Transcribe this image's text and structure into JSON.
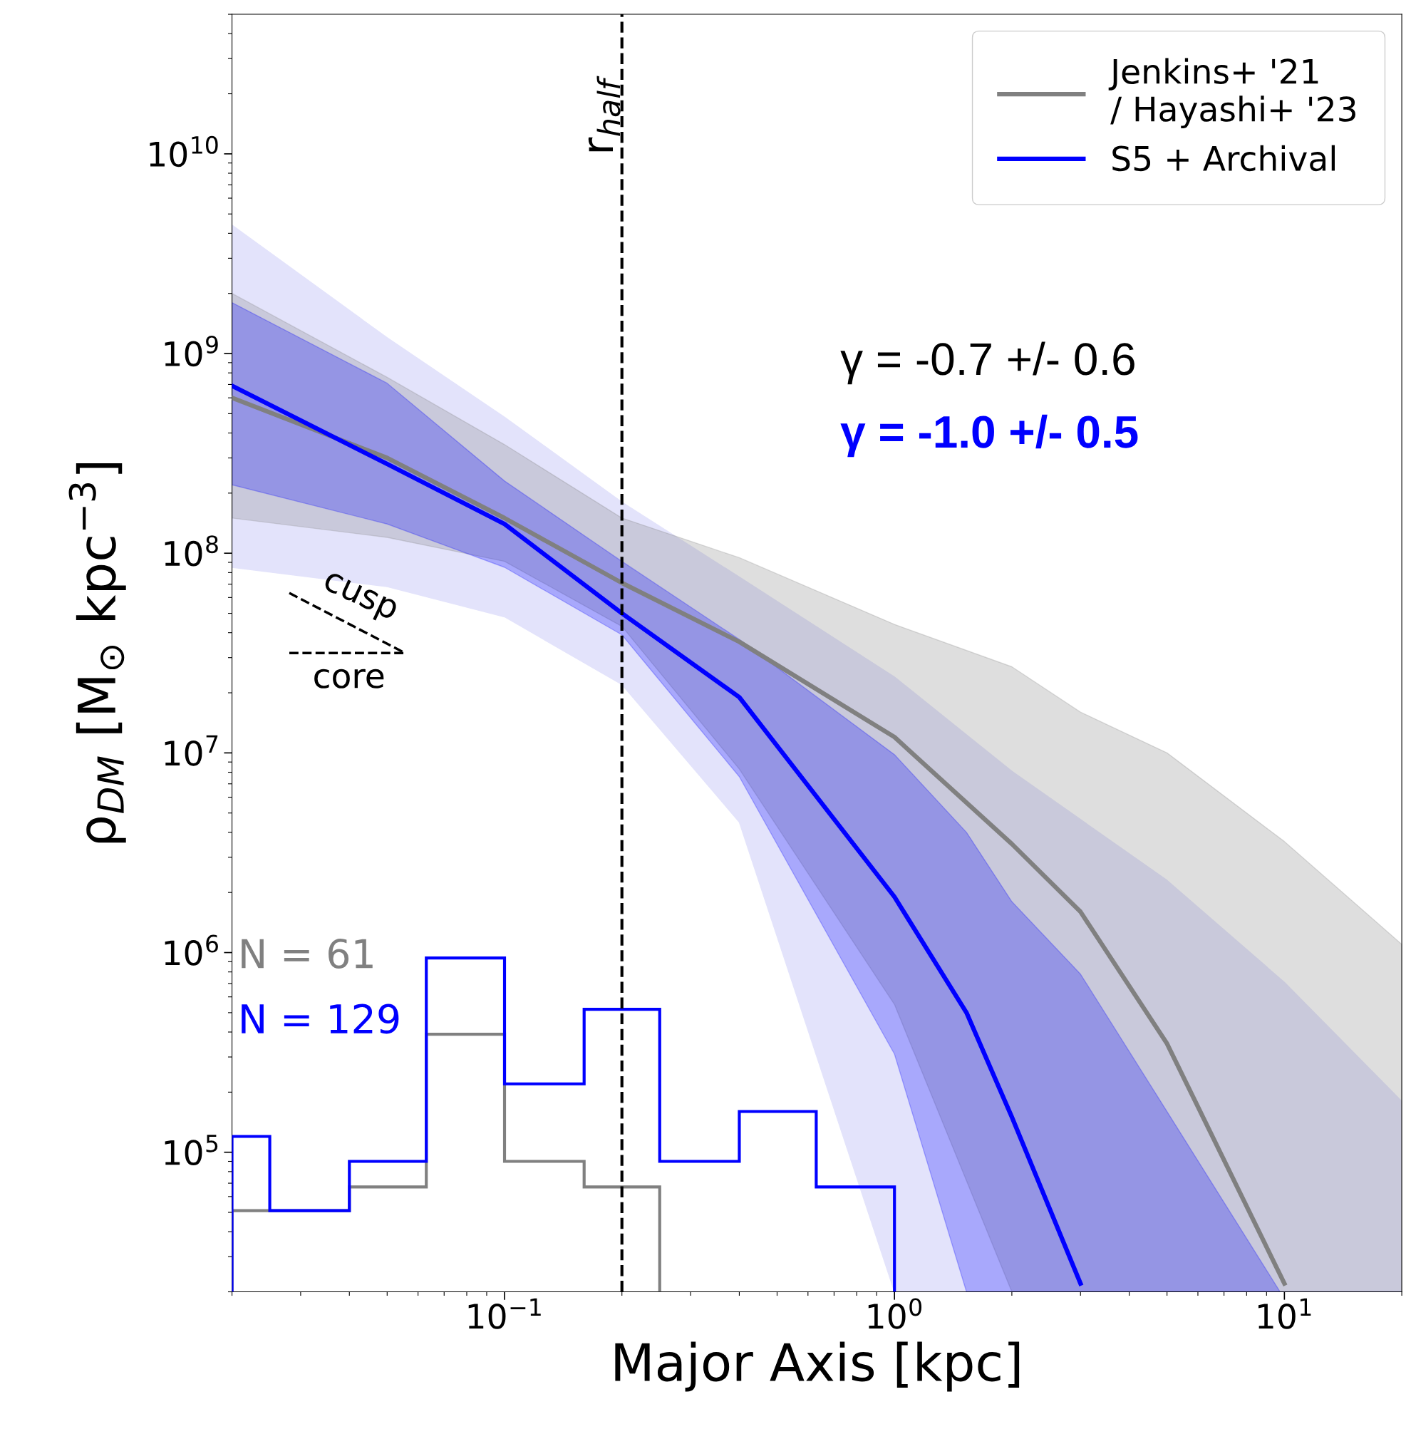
{
  "chart_data": {
    "type": "line",
    "xlabel": "Major Axis [kpc]",
    "ylabel": "ρ$_{DM}$ [M$_{⊙}$ kpc$^{−3}$]",
    "log": "xy",
    "xlim": [
      0.02,
      20
    ],
    "ylim": [
      20000.0,
      50000000000.0
    ],
    "xticks": [
      {
        "value": 0.1,
        "label": "10$^{−1}$"
      },
      {
        "value": 1,
        "label": "10$^{0}$"
      },
      {
        "value": 10,
        "label": "10$^{1}$"
      }
    ],
    "yticks": [
      {
        "value": 100000.0,
        "label": "10$^{5}$"
      },
      {
        "value": 1000000.0,
        "label": "10$^{6}$"
      },
      {
        "value": 10000000.0,
        "label": "10$^{7}$"
      },
      {
        "value": 100000000.0,
        "label": "10$^{8}$"
      },
      {
        "value": 1000000000.0,
        "label": "10$^{9}$"
      },
      {
        "value": 10000000000.0,
        "label": "10$^{10}$"
      }
    ],
    "legend": "top right",
    "series": [
      {
        "name": "Jenkins+ '21\n/ Hayashi+ '23",
        "color": "#808080",
        "x": [
          0.02,
          0.05,
          0.1,
          0.2,
          0.4,
          1,
          2,
          3,
          5,
          10,
          20
        ],
        "values": [
          600000000.0,
          300000000.0,
          150000000.0,
          71000000.0,
          36000000.0,
          12000000.0,
          3500000.0,
          1600000.0,
          350000.0,
          22000.0,
          null
        ],
        "lower": [
          150000000.0,
          120000000.0,
          91000000.0,
          43000000.0,
          8300000.0,
          550000.0,
          20000.0,
          20000.0,
          20000.0,
          20000.0,
          20000.0
        ],
        "upper": [
          2000000000.0,
          760000000.0,
          350000000.0,
          150000000.0,
          95000000.0,
          44000000.0,
          27000000.0,
          16000000.0,
          10000000.0,
          3600000.0,
          1100000.0
        ]
      },
      {
        "color": "#e3e3fb",
        "x": [
          0.02,
          0.05,
          0.1,
          0.2,
          0.4,
          1,
          2,
          5,
          10,
          20
        ],
        "values": [
          null,
          null,
          null,
          null,
          null,
          null,
          null,
          null,
          null,
          null
        ],
        "upper": [
          4400000000.0,
          1200000000.0,
          480000000.0,
          180000000.0,
          76000000.0,
          24000000.0,
          8100000.0,
          2300000.0,
          710000.0,
          180000.0
        ],
        "lower": [
          85000000.0,
          68000000.0,
          48000000.0,
          22000000.0,
          4500000.0,
          20000.0,
          20000.0,
          20000.0,
          20000.0,
          20000.0
        ]
      },
      {
        "name": "S5 + Archival",
        "color": "#0000ff",
        "x": [
          0.02,
          0.05,
          0.1,
          0.2,
          0.4,
          1,
          1.53,
          2,
          3,
          5,
          9.75,
          20
        ],
        "values": [
          690000000.0,
          280000000.0,
          140000000.0,
          50000000.0,
          19000000.0,
          1900000.0,
          500000.0,
          150000.0,
          22000.0,
          null,
          null,
          null
        ],
        "lower": [
          220000000.0,
          140000000.0,
          85000000.0,
          39000000.0,
          7600000.0,
          310000.0,
          20000.0,
          20000.0,
          20000.0,
          20000.0,
          20000.0,
          20000.0
        ],
        "upper": [
          1800000000.0,
          710000000.0,
          230000000.0,
          91000000.0,
          37000000.0,
          9800000.0,
          4000000.0,
          1800000.0,
          780000.0,
          160000.0,
          20000.0,
          20000.0
        ]
      },
      {
        "type": "histogram",
        "color": "#808080",
        "bins": [
          0.02,
          0.025,
          0.04,
          0.063,
          0.1,
          0.16,
          0.25
        ],
        "values": [
          51000.0,
          51000.0,
          67000.0,
          390000.0,
          90000.0,
          67000.0
        ]
      },
      {
        "type": "histogram",
        "color": "#0000ff",
        "bins": [
          0.02,
          0.025,
          0.04,
          0.063,
          0.1,
          0.16,
          0.25,
          0.4,
          0.63,
          1.0
        ],
        "values": [
          120000.0,
          51000.0,
          90000.0,
          940000.0,
          220000.0,
          520000.0,
          90000.0,
          160000.0,
          67000.0
        ]
      }
    ],
    "ref_lines": [
      {
        "axis": "x",
        "value": 0.2,
        "label": "r$_{half}$",
        "color": "#000000",
        "line_style": "dashed"
      }
    ],
    "annotations": [
      "N = 61",
      "N = 129",
      "γ = -0.7 +/- 0.6",
      "γ = -1.0 +/- 0.5",
      "cusp",
      "core"
    ]
  }
}
